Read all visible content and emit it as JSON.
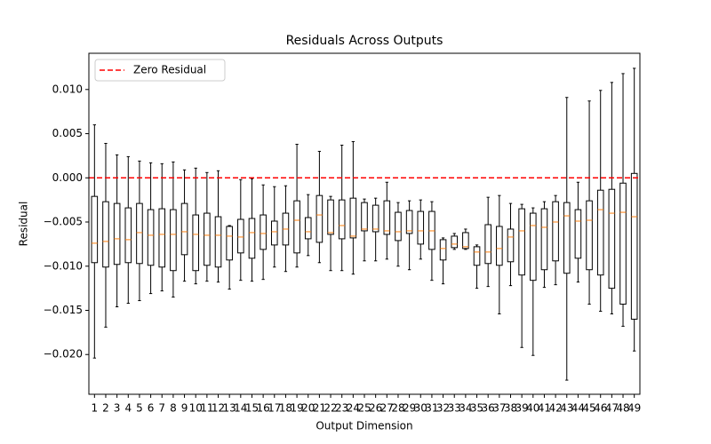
{
  "chart_data": {
    "type": "box",
    "title": "Residuals Across Outputs",
    "xlabel": "Output Dimension",
    "ylabel": "Residual",
    "categories": [
      "1",
      "2",
      "3",
      "4",
      "5",
      "6",
      "7",
      "8",
      "9",
      "10",
      "11",
      "12",
      "13",
      "14",
      "15",
      "16",
      "17",
      "18",
      "19",
      "20",
      "21",
      "22",
      "23",
      "24",
      "25",
      "26",
      "27",
      "28",
      "29",
      "30",
      "31",
      "32",
      "33",
      "34",
      "35",
      "36",
      "37",
      "38",
      "39",
      "40",
      "41",
      "42",
      "43",
      "44",
      "45",
      "46",
      "47",
      "48",
      "49"
    ],
    "whishi": [
      0.006,
      0.0039,
      0.0026,
      0.0024,
      0.0019,
      0.0017,
      0.0016,
      0.0018,
      0.0009,
      0.0011,
      0.0006,
      0.0008,
      -0.0054,
      -0.0002,
      -0.0001,
      -0.0008,
      -0.001,
      -0.0009,
      0.0038,
      -0.0019,
      0.003,
      -0.0021,
      0.0037,
      0.0041,
      -0.0024,
      -0.0023,
      -0.0005,
      -0.0028,
      -0.0026,
      -0.0025,
      -0.0027,
      -0.0068,
      -0.0063,
      -0.0058,
      -0.0076,
      -0.0022,
      -0.002,
      -0.0029,
      -0.003,
      -0.0034,
      -0.0027,
      -0.002,
      0.0091,
      -0.0005,
      0.0087,
      0.0099,
      0.0108,
      0.0118,
      0.0124
    ],
    "q3": [
      -0.0021,
      -0.0027,
      -0.0029,
      -0.0034,
      -0.0029,
      -0.0036,
      -0.0035,
      -0.0036,
      -0.0029,
      -0.0042,
      -0.004,
      -0.0044,
      -0.0055,
      -0.0047,
      -0.0046,
      -0.0042,
      -0.0049,
      -0.004,
      -0.0026,
      -0.0045,
      -0.002,
      -0.0025,
      -0.0025,
      -0.0023,
      -0.0028,
      -0.0031,
      -0.0026,
      -0.0039,
      -0.0037,
      -0.0038,
      -0.0038,
      -0.007,
      -0.0066,
      -0.0062,
      -0.0078,
      -0.0053,
      -0.0055,
      -0.0058,
      -0.0035,
      -0.004,
      -0.0035,
      -0.0027,
      -0.0028,
      -0.0036,
      -0.0026,
      -0.0014,
      -0.0013,
      -0.0006,
      0.0005
    ],
    "med": [
      -0.0074,
      -0.0072,
      -0.0069,
      -0.007,
      -0.0062,
      -0.0065,
      -0.0064,
      -0.0064,
      -0.0061,
      -0.0064,
      -0.0065,
      -0.0065,
      -0.0066,
      -0.0067,
      -0.0062,
      -0.0063,
      -0.0061,
      -0.0058,
      -0.0048,
      -0.0061,
      -0.0042,
      -0.0062,
      -0.0054,
      -0.0066,
      -0.0058,
      -0.0058,
      -0.006,
      -0.0061,
      -0.006,
      -0.006,
      -0.006,
      -0.008,
      -0.0075,
      -0.0078,
      -0.0084,
      -0.0084,
      -0.008,
      -0.0067,
      -0.006,
      -0.0054,
      -0.0056,
      -0.005,
      -0.0043,
      -0.0049,
      -0.0048,
      -0.0036,
      -0.004,
      -0.0039,
      -0.0044
    ],
    "q1": [
      -0.0096,
      -0.0101,
      -0.0098,
      -0.0096,
      -0.0097,
      -0.0099,
      -0.0101,
      -0.0105,
      -0.0087,
      -0.0105,
      -0.0099,
      -0.0101,
      -0.0093,
      -0.0085,
      -0.0091,
      -0.0081,
      -0.0076,
      -0.0076,
      -0.0085,
      -0.0069,
      -0.0073,
      -0.0064,
      -0.0069,
      -0.0068,
      -0.006,
      -0.0061,
      -0.0064,
      -0.0071,
      -0.0063,
      -0.0075,
      -0.0081,
      -0.0093,
      -0.0079,
      -0.008,
      -0.0099,
      -0.0097,
      -0.0099,
      -0.0095,
      -0.011,
      -0.0116,
      -0.0104,
      -0.0094,
      -0.0108,
      -0.0091,
      -0.0104,
      -0.011,
      -0.0125,
      -0.0143,
      -0.016
    ],
    "whislo": [
      -0.0204,
      -0.0169,
      -0.0146,
      -0.0142,
      -0.0139,
      -0.0131,
      -0.0128,
      -0.0135,
      -0.0117,
      -0.012,
      -0.0117,
      -0.0118,
      -0.0126,
      -0.0116,
      -0.0117,
      -0.0115,
      -0.0101,
      -0.0106,
      -0.0101,
      -0.0088,
      -0.0096,
      -0.0105,
      -0.0105,
      -0.0109,
      -0.0094,
      -0.0094,
      -0.0092,
      -0.01,
      -0.0104,
      -0.0092,
      -0.0116,
      -0.012,
      -0.0081,
      -0.0081,
      -0.0125,
      -0.0123,
      -0.0154,
      -0.0122,
      -0.0192,
      -0.0201,
      -0.0124,
      -0.0121,
      -0.0229,
      -0.0118,
      -0.0143,
      -0.0151,
      -0.0154,
      -0.0168,
      -0.0196
    ],
    "box_color": "#000000",
    "median_color": "#ff7f0e",
    "xlim": [
      0.5,
      49.5
    ],
    "ylim": [
      -0.0245,
      0.0141
    ],
    "yticks": [
      {
        "value": 0.01,
        "label": "0.010"
      },
      {
        "value": 0.005,
        "label": "0.005"
      },
      {
        "value": 0,
        "label": "0.000"
      },
      {
        "value": -0.005,
        "label": "−0.005"
      },
      {
        "value": -0.01,
        "label": "−0.010"
      },
      {
        "value": -0.015,
        "label": "−0.015"
      },
      {
        "value": -0.02,
        "label": "−0.020"
      }
    ],
    "hline": {
      "y": 0,
      "name": "Zero Residual",
      "color": "#ff0000"
    },
    "legend": "upper left"
  }
}
